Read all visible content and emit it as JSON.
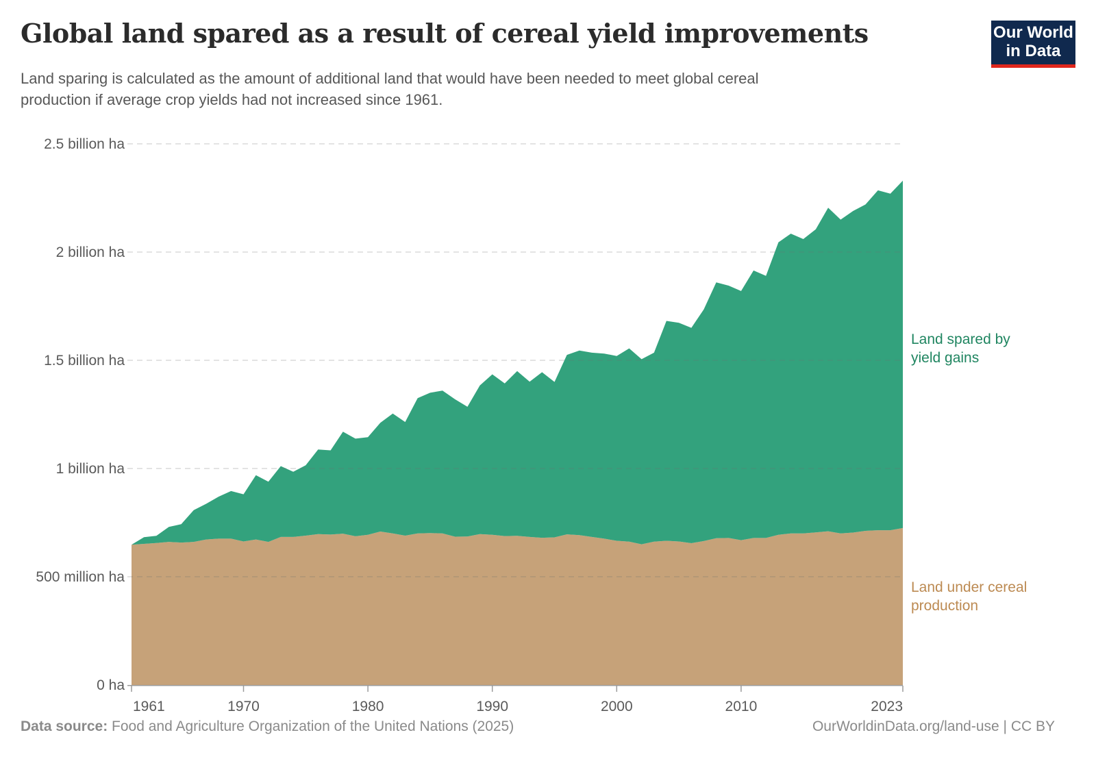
{
  "header": {
    "title": "Global land spared as a result of cereal yield improvements",
    "subtitle_lines": [
      "Land sparing is calculated as the amount of additional land that would have been needed to meet global cereal",
      "production if average crop yields had not increased since 1961."
    ]
  },
  "logo": {
    "line1": "Our World",
    "line2": "in Data",
    "background": "#10294E",
    "accent": "#E0261C"
  },
  "annotations": {
    "spared_label_lines": [
      "Land spared by",
      "yield gains"
    ],
    "cereal_label_lines": [
      "Land under cereal",
      "production"
    ],
    "spared_label_color": "#1F8560",
    "cereal_label_color": "#BC8A52"
  },
  "footer": {
    "source_label": "Data source:",
    "source_text": " Food and Agriculture Organization of the United Nations (2025)",
    "right_text": "OurWorldinData.org/land-use | CC BY"
  },
  "chart_data": {
    "type": "area",
    "stacked": true,
    "title": "Global land spared as a result of cereal yield improvements",
    "xlabel": "",
    "ylabel": "",
    "unit": "billion ha",
    "ylim": [
      0,
      2.5
    ],
    "grid": true,
    "legend_position": "right-annotations",
    "x": [
      1961,
      1962,
      1963,
      1964,
      1965,
      1966,
      1967,
      1968,
      1969,
      1970,
      1971,
      1972,
      1973,
      1974,
      1975,
      1976,
      1977,
      1978,
      1979,
      1980,
      1981,
      1982,
      1983,
      1984,
      1985,
      1986,
      1987,
      1988,
      1989,
      1990,
      1991,
      1992,
      1993,
      1994,
      1995,
      1996,
      1997,
      1998,
      1999,
      2000,
      2001,
      2002,
      2003,
      2004,
      2005,
      2006,
      2007,
      2008,
      2009,
      2010,
      2011,
      2012,
      2013,
      2014,
      2015,
      2016,
      2017,
      2018,
      2019,
      2020,
      2021,
      2022,
      2023
    ],
    "series": [
      {
        "name": "Land under cereal production",
        "color": "#C6A279",
        "values": [
          0.648,
          0.652,
          0.656,
          0.661,
          0.658,
          0.661,
          0.672,
          0.676,
          0.676,
          0.663,
          0.672,
          0.661,
          0.684,
          0.684,
          0.69,
          0.697,
          0.695,
          0.699,
          0.687,
          0.694,
          0.709,
          0.7,
          0.69,
          0.7,
          0.702,
          0.7,
          0.685,
          0.686,
          0.697,
          0.694,
          0.688,
          0.689,
          0.684,
          0.68,
          0.682,
          0.696,
          0.692,
          0.684,
          0.676,
          0.666,
          0.662,
          0.65,
          0.662,
          0.666,
          0.663,
          0.655,
          0.665,
          0.678,
          0.679,
          0.669,
          0.679,
          0.679,
          0.694,
          0.7,
          0.7,
          0.705,
          0.71,
          0.7,
          0.704,
          0.712,
          0.715,
          0.715,
          0.725
        ]
      },
      {
        "name": "Land spared by yield gains",
        "color": "#33A27D",
        "values": [
          0.0,
          0.031,
          0.033,
          0.069,
          0.085,
          0.147,
          0.165,
          0.194,
          0.22,
          0.218,
          0.297,
          0.278,
          0.327,
          0.301,
          0.325,
          0.391,
          0.389,
          0.471,
          0.451,
          0.451,
          0.502,
          0.554,
          0.525,
          0.625,
          0.648,
          0.66,
          0.635,
          0.599,
          0.687,
          0.741,
          0.705,
          0.761,
          0.717,
          0.765,
          0.718,
          0.829,
          0.853,
          0.851,
          0.855,
          0.854,
          0.893,
          0.855,
          0.873,
          1.016,
          1.01,
          0.995,
          1.07,
          1.182,
          1.166,
          1.151,
          1.236,
          1.211,
          1.351,
          1.385,
          1.36,
          1.4,
          1.495,
          1.45,
          1.486,
          1.508,
          1.57,
          1.555,
          1.605
        ]
      }
    ],
    "xticks": [
      1961,
      1970,
      1980,
      1990,
      2000,
      2010,
      2023
    ],
    "yticks": [
      {
        "value": 0,
        "label": "0 ha"
      },
      {
        "value": 0.5,
        "label": "500 million ha"
      },
      {
        "value": 1,
        "label": "1 billion ha"
      },
      {
        "value": 1.5,
        "label": "1.5 billion ha"
      },
      {
        "value": 2,
        "label": "2 billion ha"
      },
      {
        "value": 2.5,
        "label": "2.5 billion ha"
      }
    ]
  }
}
